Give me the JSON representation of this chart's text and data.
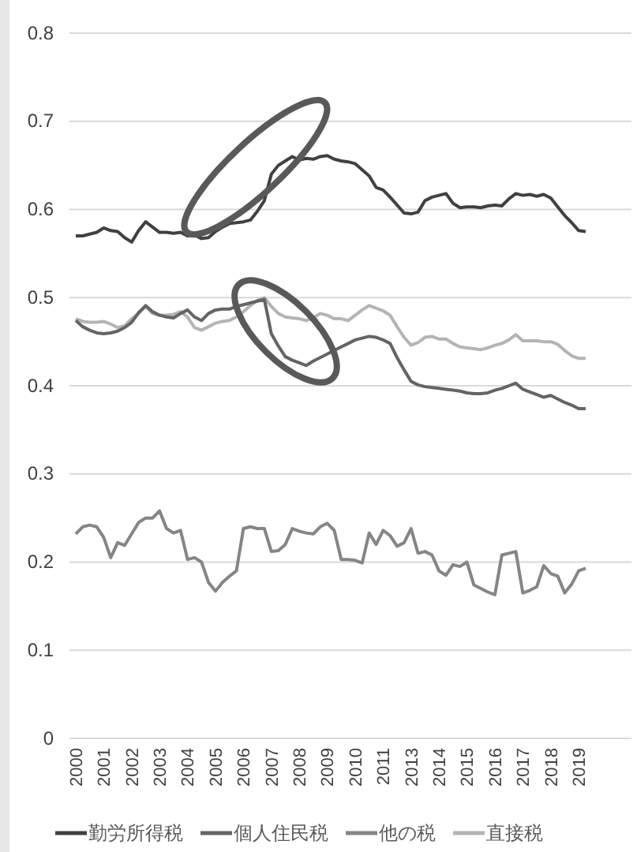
{
  "chart_data": {
    "type": "line",
    "ylim": [
      0,
      0.8
    ],
    "yticks": [
      0,
      0.1,
      0.2,
      0.3,
      0.4,
      0.5,
      0.6,
      0.7,
      0.8
    ],
    "grid": "y",
    "legend": "bottom",
    "line_style": "solid",
    "marker": "none",
    "categories": [
      "2000",
      null,
      null,
      null,
      "2001",
      null,
      null,
      null,
      "2002",
      null,
      null,
      null,
      "2003",
      null,
      null,
      null,
      "2004",
      null,
      null,
      null,
      "2005",
      null,
      null,
      null,
      "2006",
      null,
      null,
      null,
      "2007",
      null,
      null,
      null,
      "2008",
      null,
      null,
      null,
      "2009",
      null,
      null,
      null,
      "2010",
      null,
      null,
      null,
      "2011",
      null,
      null,
      null,
      "2013",
      null,
      null,
      null,
      "2014",
      null,
      null,
      null,
      "2015",
      null,
      null,
      null,
      "2016",
      null,
      null,
      null,
      "2017",
      null,
      null,
      null,
      "2018",
      null,
      null,
      null,
      "2019",
      null
    ],
    "series": [
      {
        "name": "勤労所得税",
        "color": "#404040",
        "values": [
          0.57,
          0.57,
          0.572,
          0.574,
          0.579,
          0.576,
          0.575,
          0.568,
          0.563,
          0.576,
          0.586,
          0.58,
          0.574,
          0.574,
          0.573,
          0.574,
          0.57,
          0.571,
          0.567,
          0.568,
          0.575,
          0.58,
          0.584,
          0.585,
          0.586,
          0.588,
          0.598,
          0.61,
          0.64,
          0.65,
          0.655,
          0.66,
          0.656,
          0.658,
          0.657,
          0.66,
          0.661,
          0.657,
          0.655,
          0.654,
          0.652,
          0.645,
          0.638,
          0.625,
          0.622,
          0.614,
          0.605,
          0.596,
          0.595,
          0.597,
          0.61,
          0.614,
          0.616,
          0.618,
          0.607,
          0.602,
          0.603,
          0.603,
          0.602,
          0.604,
          0.605,
          0.604,
          0.612,
          0.618,
          0.616,
          0.617,
          0.615,
          0.617,
          0.613,
          0.603,
          0.593,
          0.585,
          0.576,
          0.575
        ]
      },
      {
        "name": "個人住民税",
        "color": "#646464",
        "values": [
          0.474,
          0.467,
          0.463,
          0.46,
          0.459,
          0.46,
          0.462,
          0.466,
          0.472,
          0.483,
          0.491,
          0.484,
          0.48,
          0.478,
          0.477,
          0.482,
          0.486,
          0.478,
          0.474,
          0.482,
          0.486,
          0.487,
          0.487,
          0.49,
          0.492,
          0.494,
          0.496,
          0.498,
          0.459,
          0.445,
          0.433,
          0.429,
          0.426,
          0.423,
          0.428,
          0.432,
          0.436,
          0.44,
          0.444,
          0.448,
          0.452,
          0.454,
          0.456,
          0.455,
          0.452,
          0.448,
          0.432,
          0.418,
          0.405,
          0.401,
          0.399,
          0.398,
          0.397,
          0.396,
          0.395,
          0.394,
          0.392,
          0.391,
          0.391,
          0.392,
          0.395,
          0.397,
          0.4,
          0.403,
          0.396,
          0.393,
          0.39,
          0.387,
          0.389,
          0.385,
          0.381,
          0.378,
          0.374,
          0.374
        ]
      },
      {
        "name": "他の税",
        "color": "#858585",
        "values": [
          0.232,
          0.24,
          0.242,
          0.24,
          0.228,
          0.205,
          0.222,
          0.219,
          0.232,
          0.245,
          0.25,
          0.25,
          0.258,
          0.238,
          0.233,
          0.236,
          0.203,
          0.205,
          0.2,
          0.177,
          0.167,
          0.177,
          0.184,
          0.19,
          0.238,
          0.24,
          0.238,
          0.238,
          0.212,
          0.213,
          0.22,
          0.238,
          0.235,
          0.233,
          0.232,
          0.24,
          0.244,
          0.236,
          0.203,
          0.203,
          0.202,
          0.199,
          0.233,
          0.22,
          0.236,
          0.23,
          0.218,
          0.222,
          0.238,
          0.21,
          0.212,
          0.208,
          0.19,
          0.185,
          0.197,
          0.195,
          0.2,
          0.174,
          0.17,
          0.166,
          0.163,
          0.208,
          0.21,
          0.212,
          0.165,
          0.168,
          0.172,
          0.196,
          0.187,
          0.184,
          0.165,
          0.175,
          0.19,
          0.193
        ]
      },
      {
        "name": "直接税",
        "color": "#b4b4b4",
        "values": [
          0.476,
          0.473,
          0.472,
          0.472,
          0.473,
          0.47,
          0.466,
          0.468,
          0.476,
          0.482,
          0.49,
          0.482,
          0.48,
          0.48,
          0.481,
          0.484,
          0.478,
          0.466,
          0.463,
          0.467,
          0.471,
          0.473,
          0.474,
          0.478,
          0.484,
          0.491,
          0.497,
          0.5,
          0.49,
          0.482,
          0.478,
          0.477,
          0.476,
          0.474,
          0.477,
          0.482,
          0.48,
          0.476,
          0.476,
          0.474,
          0.48,
          0.486,
          0.491,
          0.488,
          0.485,
          0.48,
          0.467,
          0.455,
          0.446,
          0.449,
          0.455,
          0.456,
          0.453,
          0.453,
          0.448,
          0.444,
          0.443,
          0.442,
          0.441,
          0.443,
          0.446,
          0.448,
          0.452,
          0.458,
          0.451,
          0.451,
          0.451,
          0.45,
          0.45,
          0.447,
          0.44,
          0.434,
          0.431,
          0.431
        ]
      }
    ]
  }
}
